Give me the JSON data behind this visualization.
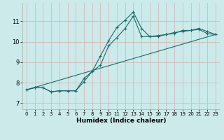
{
  "xlabel": "Humidex (Indice chaleur)",
  "background_color": "#cceaea",
  "grid_color": "#d4b8b8",
  "line_color": "#1a6b6b",
  "xlim": [
    -0.5,
    23.5
  ],
  "ylim": [
    6.7,
    11.9
  ],
  "xticks": [
    0,
    1,
    2,
    3,
    4,
    5,
    6,
    7,
    8,
    9,
    10,
    11,
    12,
    13,
    14,
    15,
    16,
    17,
    18,
    19,
    20,
    21,
    22,
    23
  ],
  "yticks": [
    7,
    8,
    9,
    10,
    11
  ],
  "line1_x": [
    0,
    1,
    2,
    3,
    4,
    5,
    6,
    7,
    8,
    9,
    10,
    11,
    12,
    13,
    14,
    15,
    16,
    17,
    18,
    19,
    20,
    21,
    22,
    23
  ],
  "line1_y": [
    7.65,
    7.75,
    7.75,
    7.55,
    7.6,
    7.6,
    7.6,
    8.2,
    8.55,
    9.3,
    10.05,
    10.7,
    11.05,
    11.45,
    10.65,
    10.25,
    10.25,
    10.35,
    10.4,
    10.55,
    10.55,
    10.65,
    10.5,
    10.35
  ],
  "line2_x": [
    0,
    1,
    2,
    3,
    4,
    5,
    6,
    7,
    8,
    9,
    10,
    11,
    12,
    13,
    14,
    15,
    16,
    17,
    18,
    19,
    20,
    21,
    22,
    23
  ],
  "line2_y": [
    7.65,
    7.75,
    7.75,
    7.55,
    7.6,
    7.6,
    7.6,
    8.05,
    8.55,
    8.85,
    9.8,
    10.2,
    10.65,
    11.25,
    10.25,
    10.25,
    10.3,
    10.35,
    10.45,
    10.5,
    10.55,
    10.6,
    10.4,
    10.35
  ],
  "line3_x": [
    0,
    23
  ],
  "line3_y": [
    7.65,
    10.35
  ]
}
